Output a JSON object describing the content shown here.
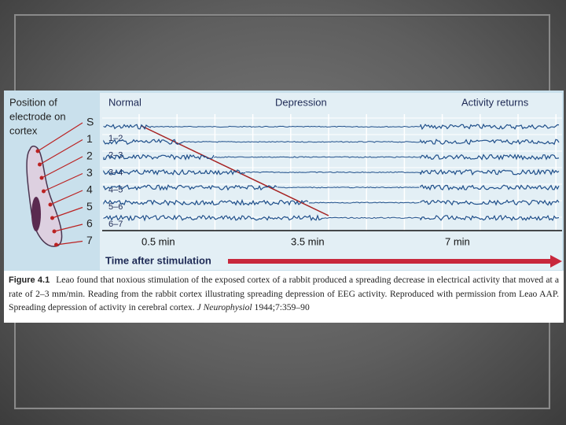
{
  "figure": {
    "left_panel": {
      "title_lines": [
        "Position of",
        "electrode on",
        "cortex"
      ],
      "electrodes": [
        "S",
        "1",
        "2",
        "3",
        "4",
        "5",
        "6",
        "7"
      ]
    },
    "headers": [
      "Normal",
      "Depression",
      "Activity returns"
    ],
    "channels": [
      "1–2",
      "2–3",
      "3–4",
      "4–5",
      "5–6",
      "6–7"
    ],
    "time_labels": [
      "0.5 min",
      "3.5 min",
      "7 min"
    ],
    "axis_label": "Time after stimulation"
  },
  "caption": {
    "label": "Figure 4.1",
    "text": "Leao found that noxious stimulation of the exposed cortex of a rabbit produced a spreading decrease in electrical activity that moved at a rate of 2–3 mm/min. Reading from the rabbit cortex illustrating spreading depression of EEG activity. Reproduced with permission from Leao AAP. Spreading depression of activity in cerebral cortex.",
    "journal": "J Neurophysiol",
    "citation": "1944;7:359–90"
  }
}
